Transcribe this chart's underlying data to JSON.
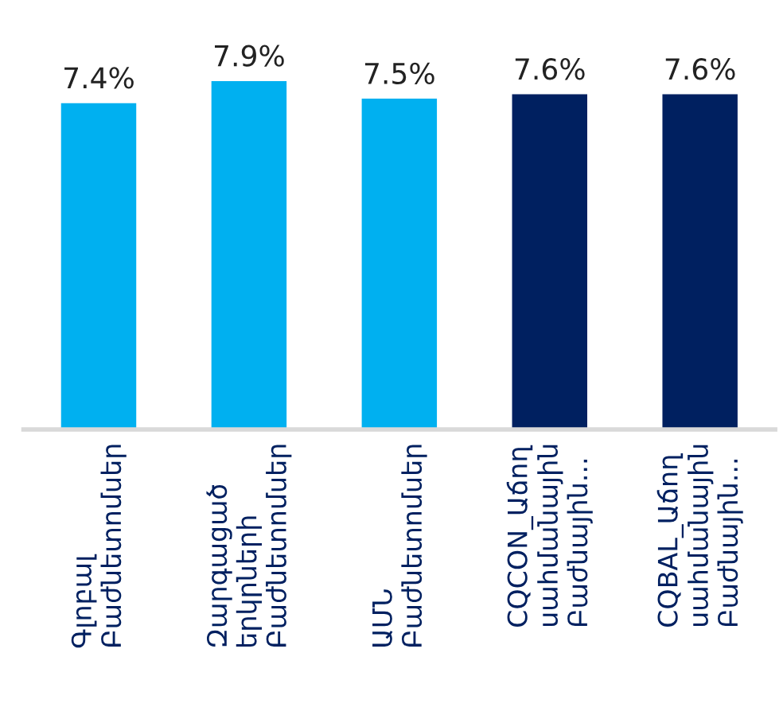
{
  "chart_data": {
    "type": "bar",
    "categories": [
      "Գլոբալ\nԲաժնետոմսեր",
      "Զարգացած\nերկրների\nԲաժնետոմսեր",
      "ԱՄՆ\nԲաժնետոմսեր",
      "CQCON_Աճող\nսահմանային\nԲաժնային...",
      "CQBAL_Աճող\nսահմանային\nԲաժնային..."
    ],
    "values": [
      7.4,
      7.9,
      7.5,
      7.6,
      7.6
    ],
    "colors": [
      "#00b0f0",
      "#00b0f0",
      "#00b0f0",
      "#002060",
      "#002060"
    ],
    "value_labels": [
      "7.4%",
      "7.9%",
      "7.5%",
      "7.6%",
      "7.6%"
    ],
    "tick_labels": "x",
    "grid": false,
    "legend": false
  }
}
